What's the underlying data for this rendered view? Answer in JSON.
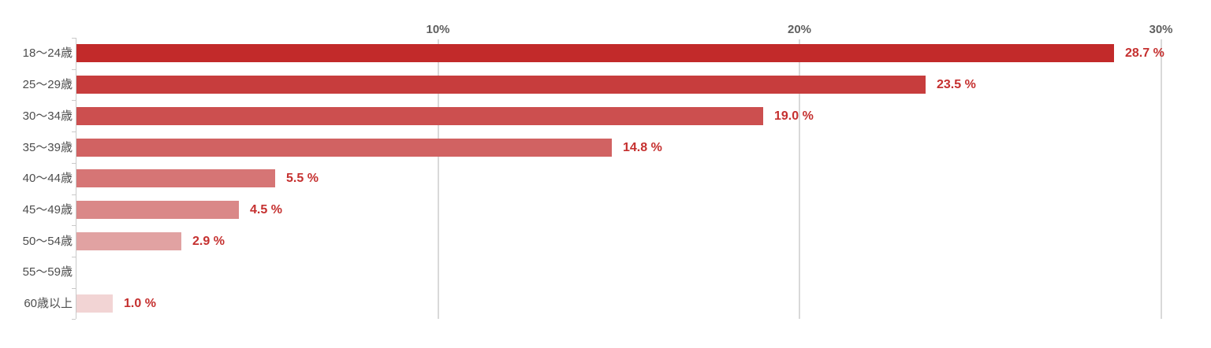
{
  "chart_data": {
    "type": "bar",
    "orientation": "horizontal",
    "title": "",
    "xlabel": "",
    "ylabel": "",
    "xlim": [
      0,
      30
    ],
    "grid": "vertical-gridlines-behind-bars",
    "legend": "none",
    "categories": [
      "18〜24歳",
      "25〜29歳",
      "30〜34歳",
      "35〜39歳",
      "40〜44歳",
      "45〜49歳",
      "50〜54歳",
      "55〜59歳",
      "60歳以上"
    ],
    "values": [
      28.7,
      23.5,
      19.0,
      14.8,
      5.5,
      4.5,
      2.9,
      0,
      1.0
    ],
    "value_labels": [
      "28.7 %",
      "23.5 %",
      "19.0 %",
      "14.8 %",
      "5.5 %",
      "4.5 %",
      "2.9 %",
      "",
      "1.0 %"
    ],
    "bar_colors": [
      "#c22a2a",
      "#c73d3d",
      "#cc4f4f",
      "#d16262",
      "#d67575",
      "#da8888",
      "#e1a2a2",
      "#ecc0c0",
      "#f2d4d4"
    ],
    "x_ticks": [
      {
        "label": "10%",
        "value": 10
      },
      {
        "label": "20%",
        "value": 20
      },
      {
        "label": "30%",
        "value": 30
      }
    ],
    "colors": {
      "value_label": "#c5302f",
      "category_label": "#4d4d4d",
      "tick_label": "#606060",
      "axis_line": "#c9c9c9",
      "gridline": "#d9d9d9",
      "background": "#ffffff"
    }
  }
}
